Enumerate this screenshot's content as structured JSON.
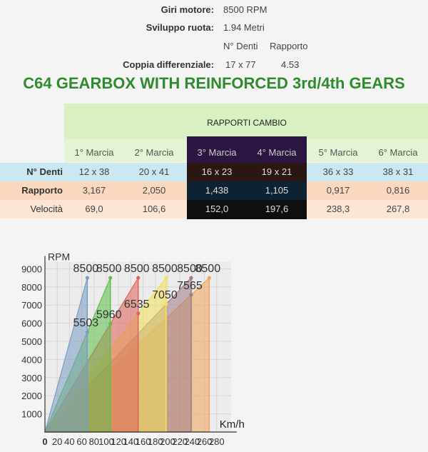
{
  "specs": {
    "rpm_label": "Giri motore:",
    "rpm_value": "8500 RPM",
    "wheel_label": "Sviluppo ruota:",
    "wheel_value": "1.94 Metri",
    "teeth_head": "N° Denti",
    "ratio_head": "Rapporto",
    "diff_label": "Coppia differenziale:",
    "diff_teeth": "17 x 77",
    "diff_ratio": "4.53"
  },
  "title": "C64 GEARBOX WITH REINFORCED 3rd/4th GEARS",
  "table": {
    "title": "RAPPORTI CAMBIO",
    "columns": [
      "1° Marcia",
      "2° Marcia",
      "3° Marcia",
      "4° Marcia",
      "5° Marcia",
      "6° Marcia"
    ],
    "rows": [
      {
        "label": "N° Denti",
        "cells": [
          "12 x 38",
          "20 x 41",
          "16 x 23",
          "19 x 21",
          "36 x 33",
          "38 x 31"
        ]
      },
      {
        "label": "Rapporto",
        "cells": [
          "3,167",
          "2,050",
          "1,438",
          "1,105",
          "0,917",
          "0,816"
        ]
      },
      {
        "label": "Velocità",
        "cells": [
          "69,0",
          "106,6",
          "152,0",
          "197,6",
          "238,3",
          "267,8"
        ]
      }
    ],
    "colors": {
      "row_teeth": "#c9e8f2",
      "row_ratio": "#f9d8bf",
      "row_speed": "#fbe6d6",
      "dark_head": "#2a1640",
      "dark_teeth": "#2b1614",
      "dark_ratio": "#0d2233",
      "dark_speed": "#0f0f0f"
    }
  },
  "chart_data": {
    "type": "area",
    "xlabel": "Km/h",
    "ylabel": "RPM",
    "xlim": [
      0,
      280
    ],
    "ylim": [
      0,
      9000
    ],
    "x_ticks": [
      0,
      20,
      40,
      60,
      80,
      100,
      120,
      140,
      160,
      180,
      200,
      220,
      240,
      260,
      280
    ],
    "y_ticks": [
      1000,
      2000,
      3000,
      4000,
      5000,
      6000,
      7000,
      8000,
      9000
    ],
    "grid": true,
    "series": [
      {
        "speed": 69.0,
        "max_rpm": 8500,
        "drop_rpm": 5503,
        "color": "#7b9cc4"
      },
      {
        "speed": 106.6,
        "max_rpm": 8500,
        "drop_rpm": 5960,
        "color": "#5cbf4a"
      },
      {
        "speed": 152.0,
        "max_rpm": 8500,
        "drop_rpm": 6535,
        "color": "#e0605a"
      },
      {
        "speed": 197.6,
        "max_rpm": 8500,
        "drop_rpm": 7050,
        "color": "#f2e25a"
      },
      {
        "speed": 238.3,
        "max_rpm": 8500,
        "drop_rpm": 7565,
        "color": "#a07a8a"
      },
      {
        "speed": 267.8,
        "max_rpm": 8500,
        "drop_rpm": null,
        "color": "#f0a55a"
      }
    ],
    "labels_max": [
      "8500",
      "8500",
      "8500",
      "8500",
      "8500",
      "8500"
    ],
    "labels_drop": [
      "5503",
      "5960",
      "6535",
      "7050",
      "7565"
    ]
  }
}
